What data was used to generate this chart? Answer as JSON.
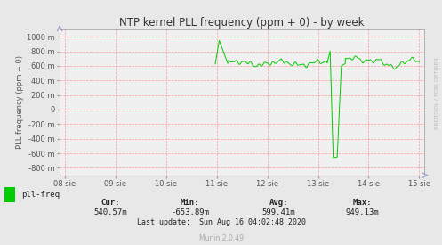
{
  "title": "NTP kernel PLL frequency (ppm + 0) - by week",
  "ylabel": "PLL frequency (ppm + 0)",
  "background_color": "#e8e8e8",
  "plot_bg_color": "#f0f0f0",
  "grid_color": "#ff9999",
  "line_color": "#00cc00",
  "title_color": "#333333",
  "axis_color": "#555555",
  "ylim": [
    -900,
    1100
  ],
  "yticks": [
    -800,
    -600,
    -400,
    -200,
    0,
    200,
    400,
    600,
    800,
    1000
  ],
  "ytick_labels": [
    "-800 m",
    "-600 m",
    "-400 m",
    "-200 m",
    "0",
    "200 m",
    "400 m",
    "600 m",
    "800 m",
    "1000 m"
  ],
  "xtick_labels": [
    "08 sie",
    "09 sie",
    "10 sie",
    "11 sie",
    "12 sie",
    "13 sie",
    "14 sie",
    "15 sie"
  ],
  "legend_label": "pll-freq",
  "legend_color": "#00cc00",
  "cur_label": "Cur:",
  "cur_val": "540.57m",
  "min_label": "Min:",
  "min_val": "-653.89m",
  "avg_label": "Avg:",
  "avg_val": "599.41m",
  "max_label": "Max:",
  "max_val": "949.13m",
  "last_update": "Last update:  Sun Aug 16 04:02:48 2020",
  "munin_version": "Munin 2.0.49",
  "watermark": "RRDTOOL / TOBI OETIKER"
}
